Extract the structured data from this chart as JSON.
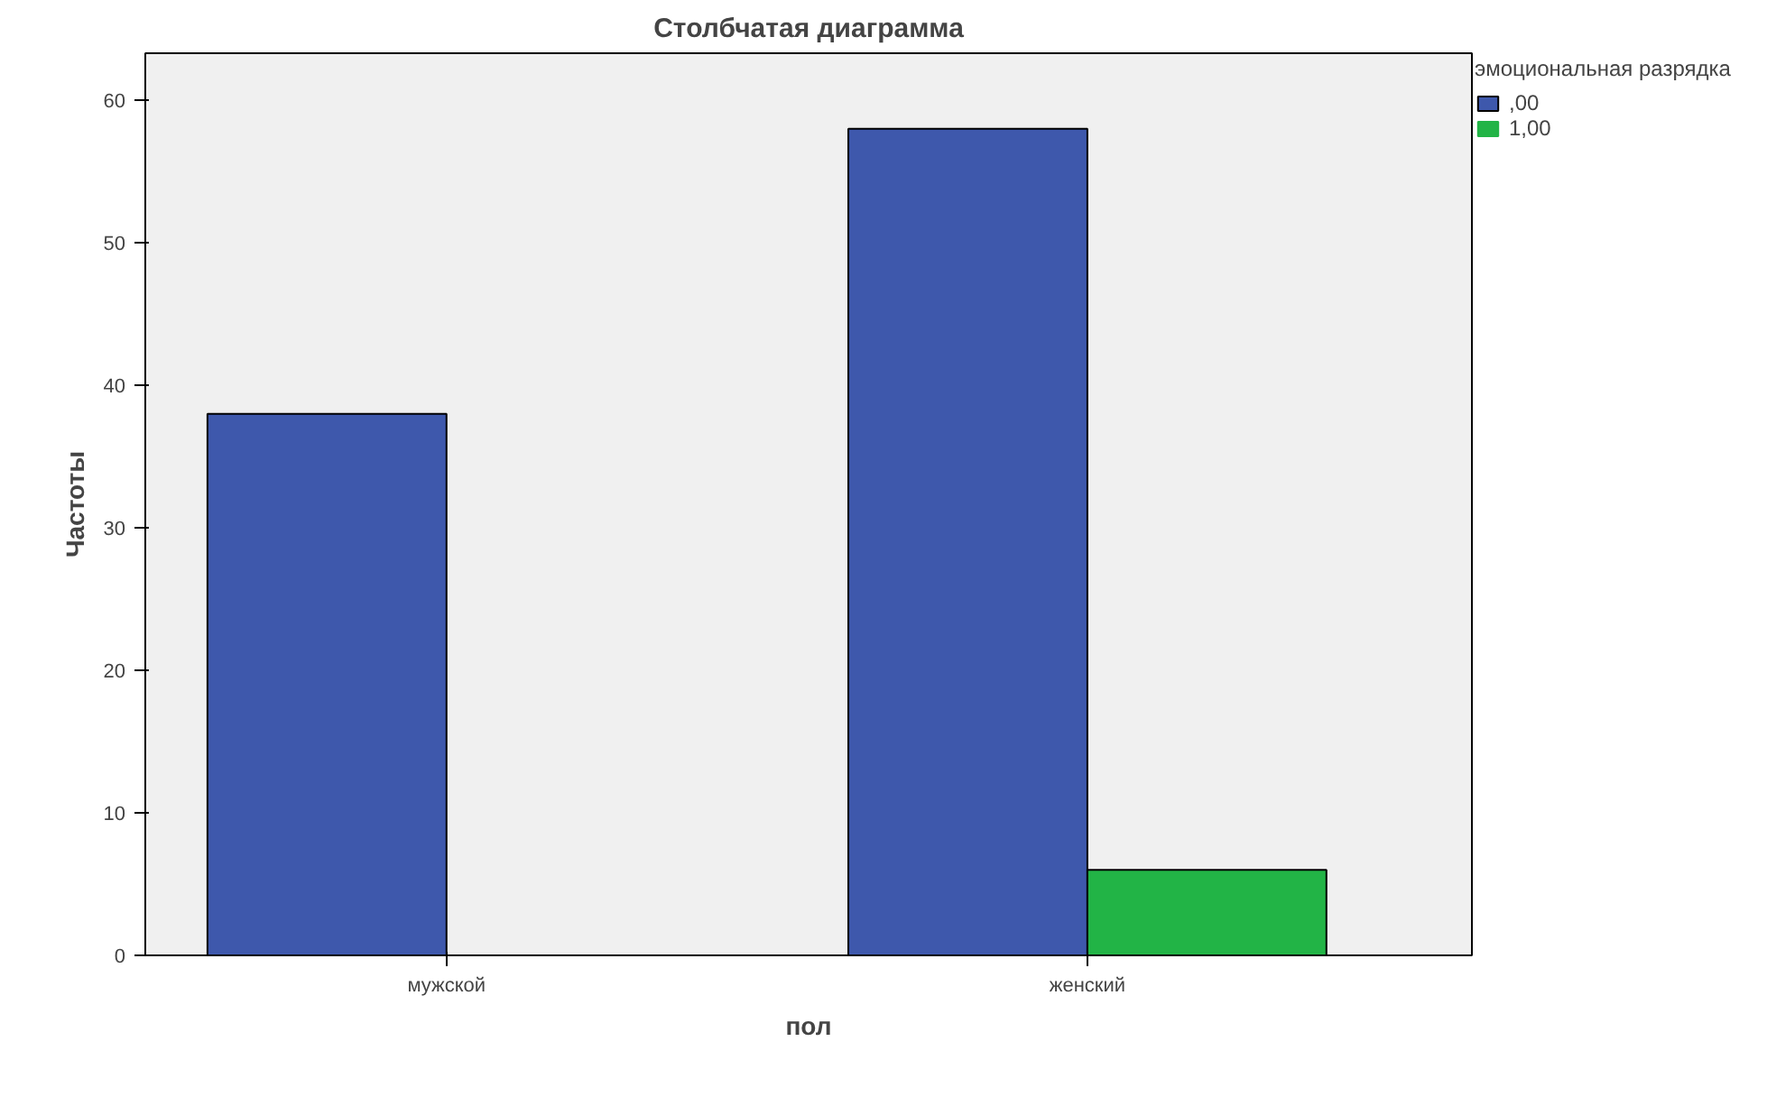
{
  "chart_data": {
    "type": "bar",
    "title": "Столбчатая диаграмма",
    "xlabel": "пол",
    "ylabel": "Частоты",
    "legend_title": "эмоциональная разрядка",
    "categories": [
      "мужской",
      "женский"
    ],
    "series": [
      {
        "name": ",00",
        "color": "#3e58ac",
        "values": [
          38,
          58
        ]
      },
      {
        "name": "1,00",
        "color": "#22b446",
        "values": [
          0,
          6
        ]
      }
    ],
    "ylim": [
      0,
      63.3
    ],
    "yticks": [
      0,
      10,
      20,
      30,
      40,
      50,
      60
    ],
    "grid": false,
    "legend": "top right"
  }
}
